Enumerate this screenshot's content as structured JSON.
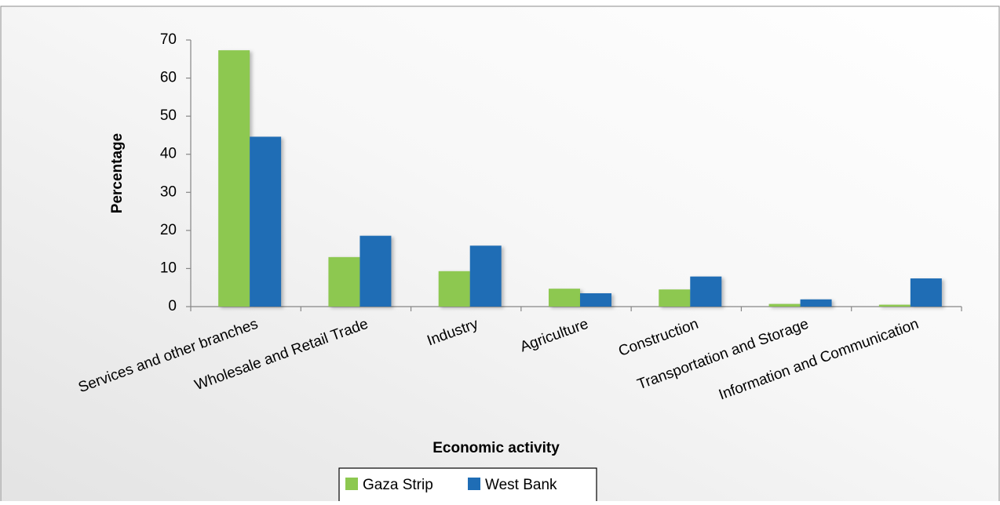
{
  "chart_data": {
    "type": "bar",
    "categories": [
      "Services and other branches",
      "Wholesale and Retail Trade",
      "Industry",
      "Agriculture",
      "Construction",
      "Transportation and Storage",
      "Information and Communication"
    ],
    "series": [
      {
        "name": "Gaza Strip",
        "color": "#8dc850",
        "values": [
          67.3,
          13.0,
          9.3,
          4.7,
          4.5,
          0.7,
          0.5
        ]
      },
      {
        "name": "West Bank",
        "color": "#1f6db5",
        "values": [
          44.6,
          18.6,
          16.0,
          3.5,
          7.9,
          1.9,
          7.4
        ]
      }
    ],
    "ylim": [
      0,
      70
    ],
    "yticks": [
      0,
      10,
      20,
      30,
      40,
      50,
      60,
      70
    ],
    "y_label": "Percentage",
    "x_label": "Economic activity",
    "legend": "bottom",
    "grid": false
  }
}
